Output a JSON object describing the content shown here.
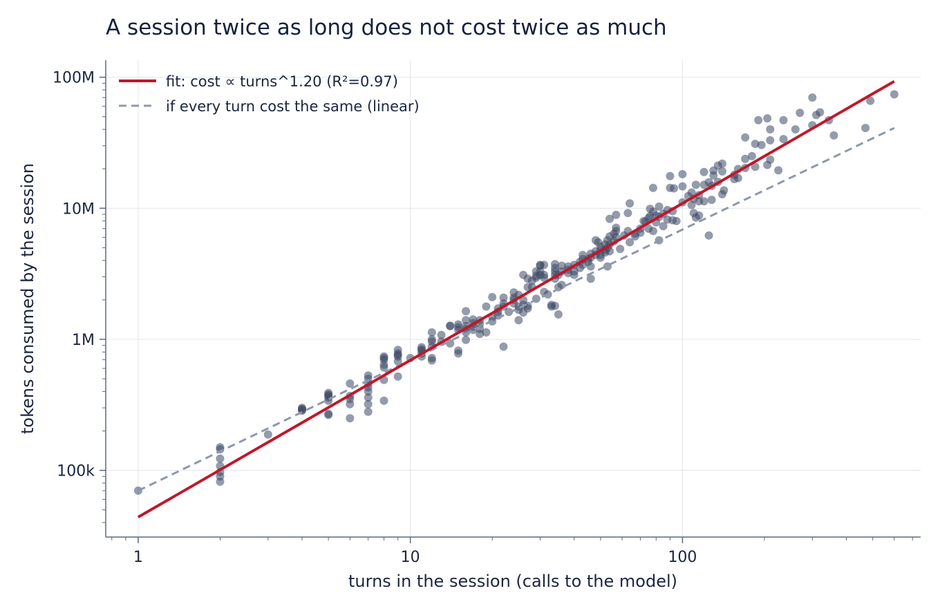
{
  "chart_data": {
    "type": "scatter",
    "title": "A session twice as long does not cost twice as much",
    "xlabel": "turns in the session (calls to the model)",
    "ylabel": "tokens consumed by the session",
    "xscale": "log",
    "yscale": "log",
    "xlim": [
      0.76,
      750
    ],
    "ylim": [
      31000,
      135000000
    ],
    "x_ticks": [
      1,
      10,
      100
    ],
    "x_tick_labels": [
      "1",
      "10",
      "100"
    ],
    "y_ticks": [
      100000,
      1000000,
      10000000,
      100000000
    ],
    "y_tick_labels": [
      "100k",
      "1M",
      "10M",
      "100M"
    ],
    "grid": true,
    "legend_position": "top-left",
    "colors": {
      "points": "#3c4865",
      "fit": "#c0172a",
      "linear": "#8e98ab"
    },
    "fit": {
      "label": "fit: cost ∝ turns^1.20  (R²=0.97)",
      "exponent": 1.2,
      "x_range": [
        1,
        600
      ],
      "y_at_1": 44000,
      "y_at_600": 93000000
    },
    "linear": {
      "label": "if every turn cost the same (linear)",
      "x_range": [
        1,
        600
      ],
      "y_at_1": 70000,
      "y_at_600": 41000000
    },
    "points": [
      [
        1,
        70000
      ],
      [
        2,
        150000
      ],
      [
        2,
        145000
      ],
      [
        2,
        123000
      ],
      [
        2,
        108000
      ],
      [
        2,
        97000
      ],
      [
        2,
        90000
      ],
      [
        2,
        82000
      ],
      [
        3,
        188000
      ],
      [
        4,
        300000
      ],
      [
        4,
        295000
      ],
      [
        4,
        290000
      ],
      [
        4,
        285000
      ],
      [
        5,
        390000
      ],
      [
        5,
        378000
      ],
      [
        5,
        372000
      ],
      [
        5,
        360000
      ],
      [
        5,
        340000
      ],
      [
        5,
        270000
      ],
      [
        5,
        265000
      ],
      [
        6,
        460000
      ],
      [
        6,
        370000
      ],
      [
        6,
        350000
      ],
      [
        6,
        320000
      ],
      [
        6,
        250000
      ],
      [
        7,
        530000
      ],
      [
        7,
        500000
      ],
      [
        7,
        460000
      ],
      [
        7,
        430000
      ],
      [
        7,
        400000
      ],
      [
        7,
        360000
      ],
      [
        7,
        320000
      ],
      [
        7,
        280000
      ],
      [
        8,
        740000
      ],
      [
        8,
        720000
      ],
      [
        8,
        700000
      ],
      [
        8,
        640000
      ],
      [
        8,
        610000
      ],
      [
        8,
        490000
      ],
      [
        8,
        340000
      ],
      [
        9,
        830000
      ],
      [
        9,
        780000
      ],
      [
        9,
        760000
      ],
      [
        9,
        740000
      ],
      [
        9,
        680000
      ],
      [
        9,
        520000
      ],
      [
        10,
        720000
      ],
      [
        11,
        870000
      ],
      [
        11,
        840000
      ],
      [
        11,
        820000
      ],
      [
        11,
        780000
      ],
      [
        11,
        740000
      ],
      [
        12,
        1130000
      ],
      [
        12,
        1000000
      ],
      [
        12,
        960000
      ],
      [
        12,
        880000
      ],
      [
        12,
        720000
      ],
      [
        12,
        690000
      ],
      [
        13,
        1080000
      ],
      [
        13,
        960000
      ],
      [
        14,
        1270000
      ],
      [
        14,
        1260000
      ],
      [
        14,
        930000
      ],
      [
        15,
        1300000
      ],
      [
        15,
        1240000
      ],
      [
        15,
        1180000
      ],
      [
        15,
        820000
      ],
      [
        15,
        780000
      ],
      [
        16,
        1640000
      ],
      [
        16,
        1400000
      ],
      [
        16,
        1260000
      ],
      [
        16,
        1200000
      ],
      [
        16,
        1130000
      ],
      [
        16,
        990000
      ],
      [
        17,
        1420000
      ],
      [
        17,
        1330000
      ],
      [
        17,
        1250000
      ],
      [
        17,
        1180000
      ],
      [
        18,
        1400000
      ],
      [
        18,
        1310000
      ],
      [
        18,
        1200000
      ],
      [
        18,
        1100000
      ],
      [
        19,
        1780000
      ],
      [
        19,
        1130000
      ],
      [
        20,
        2100000
      ],
      [
        20,
        1480000
      ],
      [
        20,
        1370000
      ],
      [
        21,
        1720000
      ],
      [
        21,
        1620000
      ],
      [
        21,
        1520000
      ],
      [
        22,
        2080000
      ],
      [
        22,
        1880000
      ],
      [
        22,
        1780000
      ],
      [
        22,
        880000
      ],
      [
        23,
        1620000
      ],
      [
        24,
        2280000
      ],
      [
        24,
        2080000
      ],
      [
        24,
        2000000
      ],
      [
        24,
        1880000
      ],
      [
        25,
        2180000
      ],
      [
        25,
        1780000
      ],
      [
        25,
        1680000
      ],
      [
        25,
        1400000
      ],
      [
        26,
        3100000
      ],
      [
        26,
        2000000
      ],
      [
        26,
        1830000
      ],
      [
        26,
        1600000
      ],
      [
        27,
        2900000
      ],
      [
        27,
        2500000
      ],
      [
        27,
        1800000
      ],
      [
        27,
        1720000
      ],
      [
        28,
        2800000
      ],
      [
        28,
        2500000
      ],
      [
        29,
        3300000
      ],
      [
        29,
        3050000
      ],
      [
        29,
        2950000
      ],
      [
        29,
        2040000
      ],
      [
        30,
        3700000
      ],
      [
        30,
        3650000
      ],
      [
        30,
        3300000
      ],
      [
        30,
        3100000
      ],
      [
        31,
        3700000
      ],
      [
        31,
        3100000
      ],
      [
        31,
        2950000
      ],
      [
        31,
        2300000
      ],
      [
        32,
        2200000
      ],
      [
        33,
        1830000
      ],
      [
        33,
        1780000
      ],
      [
        34,
        3750000
      ],
      [
        34,
        3500000
      ],
      [
        34,
        3300000
      ],
      [
        34,
        3100000
      ],
      [
        34,
        2900000
      ],
      [
        34,
        1800000
      ],
      [
        35,
        3100000
      ],
      [
        35,
        2500000
      ],
      [
        35,
        1550000
      ],
      [
        36,
        3650000
      ],
      [
        36,
        3300000
      ],
      [
        36,
        2600000
      ],
      [
        38,
        3600000
      ],
      [
        38,
        3400000
      ],
      [
        38,
        3200000
      ],
      [
        40,
        3700000
      ],
      [
        40,
        3300000
      ],
      [
        40,
        3100000
      ],
      [
        42,
        3900000
      ],
      [
        42,
        3500000
      ],
      [
        43,
        4400000
      ],
      [
        43,
        4100000
      ],
      [
        43,
        3700000
      ],
      [
        45,
        4100000
      ],
      [
        45,
        3900000
      ],
      [
        46,
        4500000
      ],
      [
        46,
        4200000
      ],
      [
        46,
        3600000
      ],
      [
        46,
        2900000
      ],
      [
        48,
        5700000
      ],
      [
        48,
        4700000
      ],
      [
        48,
        4400000
      ],
      [
        49,
        5500000
      ],
      [
        50,
        5100000
      ],
      [
        50,
        4800000
      ],
      [
        50,
        4400000
      ],
      [
        50,
        4200000
      ],
      [
        52,
        5300000
      ],
      [
        52,
        4800000
      ],
      [
        52,
        4600000
      ],
      [
        53,
        5700000
      ],
      [
        53,
        5000000
      ],
      [
        53,
        3600000
      ],
      [
        54,
        8300000
      ],
      [
        54,
        6100000
      ],
      [
        54,
        5300000
      ],
      [
        54,
        4700000
      ],
      [
        56,
        6400000
      ],
      [
        56,
        5600000
      ],
      [
        57,
        8900000
      ],
      [
        57,
        7100000
      ],
      [
        57,
        6700000
      ],
      [
        57,
        6000000
      ],
      [
        59,
        4900000
      ],
      [
        61,
        6200000
      ],
      [
        63,
        9200000
      ],
      [
        63,
        6700000
      ],
      [
        64,
        10900000
      ],
      [
        64,
        5500000
      ],
      [
        67,
        6400000
      ],
      [
        67,
        6100000
      ],
      [
        70,
        7000000
      ],
      [
        70,
        6500000
      ],
      [
        72,
        8000000
      ],
      [
        73,
        7900000
      ],
      [
        75,
        8400000
      ],
      [
        75,
        7000000
      ],
      [
        76,
        9900000
      ],
      [
        76,
        8700000
      ],
      [
        78,
        14300000
      ],
      [
        78,
        9400000
      ],
      [
        78,
        6700000
      ],
      [
        80,
        8800000
      ],
      [
        80,
        7800000
      ],
      [
        82,
        10300000
      ],
      [
        82,
        8600000
      ],
      [
        82,
        5700000
      ],
      [
        85,
        9100000
      ],
      [
        85,
        7300000
      ],
      [
        88,
        9700000
      ],
      [
        88,
        8200000
      ],
      [
        90,
        17600000
      ],
      [
        90,
        14300000
      ],
      [
        92,
        9500000
      ],
      [
        92,
        8100000
      ],
      [
        93,
        14200000
      ],
      [
        95,
        8000000
      ],
      [
        100,
        18200000
      ],
      [
        100,
        14700000
      ],
      [
        100,
        11100000
      ],
      [
        105,
        12400000
      ],
      [
        108,
        13200000
      ],
      [
        108,
        10600000
      ],
      [
        110,
        11800000
      ],
      [
        110,
        9200000
      ],
      [
        112,
        15100000
      ],
      [
        112,
        8500000
      ],
      [
        115,
        12600000
      ],
      [
        115,
        11300000
      ],
      [
        115,
        8800000
      ],
      [
        120,
        18900000
      ],
      [
        120,
        15100000
      ],
      [
        120,
        11300000
      ],
      [
        125,
        15800000
      ],
      [
        125,
        6200000
      ],
      [
        128,
        14800000
      ],
      [
        128,
        11600000
      ],
      [
        130,
        19400000
      ],
      [
        130,
        17800000
      ],
      [
        135,
        21200000
      ],
      [
        135,
        15900000
      ],
      [
        140,
        21900000
      ],
      [
        140,
        19100000
      ],
      [
        140,
        12800000
      ],
      [
        142,
        13700000
      ],
      [
        155,
        18000000
      ],
      [
        155,
        16700000
      ],
      [
        160,
        19900000
      ],
      [
        160,
        17000000
      ],
      [
        170,
        34700000
      ],
      [
        170,
        23800000
      ],
      [
        170,
        20300000
      ],
      [
        180,
        25000000
      ],
      [
        185,
        31000000
      ],
      [
        185,
        20700000
      ],
      [
        190,
        47000000
      ],
      [
        195,
        30400000
      ],
      [
        205,
        48500000
      ],
      [
        205,
        21400000
      ],
      [
        210,
        40000000
      ],
      [
        210,
        33000000
      ],
      [
        210,
        23500000
      ],
      [
        225,
        19500000
      ],
      [
        235,
        47000000
      ],
      [
        235,
        33700000
      ],
      [
        260,
        40000000
      ],
      [
        270,
        53500000
      ],
      [
        300,
        70000000
      ],
      [
        300,
        43000000
      ],
      [
        310,
        51500000
      ],
      [
        320,
        54000000
      ],
      [
        345,
        47000000
      ],
      [
        360,
        36000000
      ],
      [
        470,
        41000000
      ],
      [
        490,
        66000000
      ],
      [
        600,
        74000000
      ]
    ]
  }
}
